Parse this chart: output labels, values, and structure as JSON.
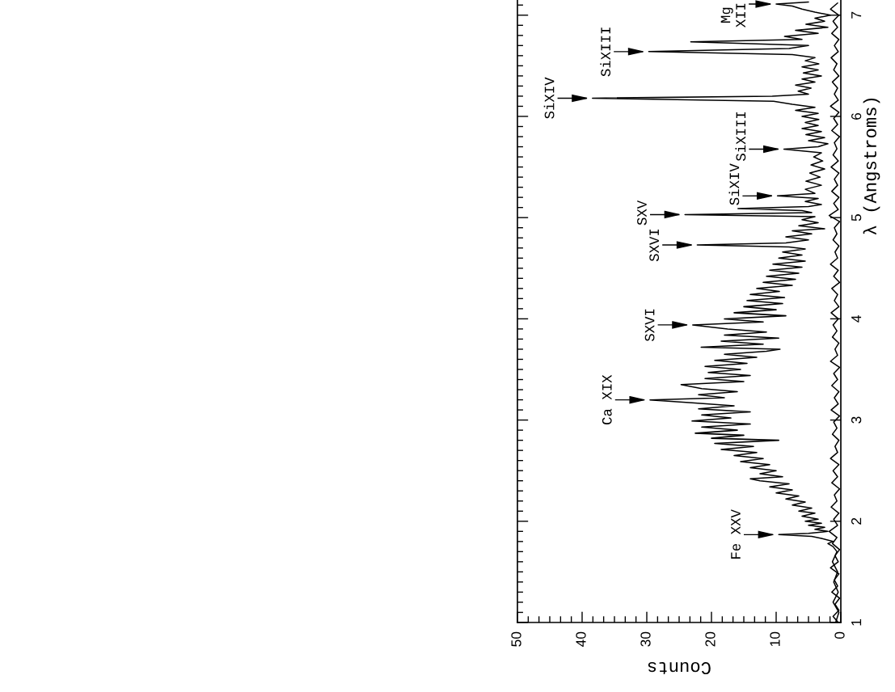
{
  "chart_data": {
    "type": "line",
    "xlabel": "Counts",
    "ylabel": "λ (Angstroms)",
    "xlim": [
      50,
      0
    ],
    "ylim": [
      1,
      7.15
    ],
    "xticks": [
      0,
      {
        "value": 1.67,
        "label": null
      },
      {
        "value": 3.33,
        "label": null
      },
      {
        "value": 5,
        "label": null
      },
      {
        "value": 6.67,
        "label": null
      },
      {
        "value": 8.33,
        "label": null
      },
      10,
      {
        "value": 11.67,
        "label": null
      },
      {
        "value": 13.33,
        "label": null
      },
      {
        "value": 15,
        "label": null
      },
      {
        "value": 16.67,
        "label": null
      },
      {
        "value": 18.33,
        "label": null
      },
      20,
      {
        "value": 21.67,
        "label": null
      },
      {
        "value": 23.33,
        "label": null
      },
      {
        "value": 25,
        "label": null
      },
      {
        "value": 26.67,
        "label": null
      },
      {
        "value": 28.33,
        "label": null
      },
      30,
      {
        "value": 31.67,
        "label": null
      },
      {
        "value": 33.33,
        "label": null
      },
      {
        "value": 35,
        "label": null
      },
      {
        "value": 36.67,
        "label": null
      },
      {
        "value": 38.33,
        "label": null
      },
      40,
      {
        "value": 41.67,
        "label": null
      },
      {
        "value": 43.33,
        "label": null
      },
      {
        "value": 45,
        "label": null
      },
      {
        "value": 46.67,
        "label": null
      },
      {
        "value": 48.33,
        "label": null
      },
      50
    ],
    "yticks": [
      1,
      {
        "value": 1.1,
        "label": null
      },
      {
        "value": 1.2,
        "label": null
      },
      {
        "value": 1.3,
        "label": null
      },
      {
        "value": 1.4,
        "label": null
      },
      {
        "value": 1.5,
        "label": null
      },
      {
        "value": 1.6,
        "label": null
      },
      {
        "value": 1.7,
        "label": null
      },
      {
        "value": 1.8,
        "label": null
      },
      {
        "value": 1.9,
        "label": null
      },
      2,
      {
        "value": 2.1,
        "label": null
      },
      {
        "value": 2.2,
        "label": null
      },
      {
        "value": 2.3,
        "label": null
      },
      {
        "value": 2.4,
        "label": null
      },
      {
        "value": 2.5,
        "label": null
      },
      {
        "value": 2.6,
        "label": null
      },
      {
        "value": 2.7,
        "label": null
      },
      {
        "value": 2.8,
        "label": null
      },
      {
        "value": 2.9,
        "label": null
      },
      3,
      {
        "value": 3.1,
        "label": null
      },
      {
        "value": 3.2,
        "label": null
      },
      {
        "value": 3.3,
        "label": null
      },
      {
        "value": 3.4,
        "label": null
      },
      {
        "value": 3.5,
        "label": null
      },
      {
        "value": 3.6,
        "label": null
      },
      {
        "value": 3.7,
        "label": null
      },
      {
        "value": 3.8,
        "label": null
      },
      {
        "value": 3.9,
        "label": null
      },
      4,
      {
        "value": 4.1,
        "label": null
      },
      {
        "value": 4.2,
        "label": null
      },
      {
        "value": 4.3,
        "label": null
      },
      {
        "value": 4.4,
        "label": null
      },
      {
        "value": 4.5,
        "label": null
      },
      {
        "value": 4.6,
        "label": null
      },
      {
        "value": 4.7,
        "label": null
      },
      {
        "value": 4.8,
        "label": null
      },
      {
        "value": 4.9,
        "label": null
      },
      5,
      {
        "value": 5.1,
        "label": null
      },
      {
        "value": 5.2,
        "label": null
      },
      {
        "value": 5.3,
        "label": null
      },
      {
        "value": 5.4,
        "label": null
      },
      {
        "value": 5.5,
        "label": null
      },
      {
        "value": 5.6,
        "label": null
      },
      {
        "value": 5.7,
        "label": null
      },
      {
        "value": 5.8,
        "label": null
      },
      {
        "value": 5.9,
        "label": null
      },
      6,
      {
        "value": 6.1,
        "label": null
      },
      {
        "value": 6.2,
        "label": null
      },
      {
        "value": 6.3,
        "label": null
      },
      {
        "value": 6.4,
        "label": null
      },
      {
        "value": 6.5,
        "label": null
      },
      {
        "value": 6.6,
        "label": null
      },
      {
        "value": 6.7,
        "label": null
      },
      {
        "value": 6.8,
        "label": null
      },
      {
        "value": 6.9,
        "label": null
      },
      7,
      {
        "value": 7.1,
        "label": null
      }
    ],
    "series": [
      {
        "color": "#000000",
        "values": [
          1.0,
          1.1,
          1.2,
          1.3,
          1.4,
          1.5,
          1.6,
          1.7,
          1.75,
          1.78,
          1.8,
          1.83,
          1.85,
          1.868,
          1.88,
          1.9,
          1.92,
          1.94,
          1.96,
          1.98,
          2.0,
          2.02,
          2.05,
          2.08,
          2.1,
          2.13,
          2.16,
          2.19,
          2.22,
          2.25,
          2.28,
          2.31,
          2.34,
          2.37,
          2.4,
          2.42,
          2.44,
          2.47,
          2.5,
          2.53,
          2.56,
          2.59,
          2.62,
          2.65,
          2.68,
          2.71,
          2.74,
          2.77,
          2.8,
          2.82,
          2.85,
          2.87,
          2.9,
          2.93,
          2.96,
          2.99,
          3.02,
          3.05,
          3.08,
          3.11,
          3.14,
          3.17,
          3.199,
          3.22,
          3.25,
          3.28,
          3.31,
          3.35,
          3.38,
          3.41,
          3.44,
          3.47,
          3.5,
          3.53,
          3.56,
          3.59,
          3.62,
          3.65,
          3.68,
          3.7,
          3.72,
          3.75,
          3.78,
          3.81,
          3.84,
          3.87,
          3.9,
          3.94,
          3.97,
          4.0,
          4.03,
          4.06,
          4.09,
          4.12,
          4.15,
          4.18,
          4.21,
          4.24,
          4.27,
          4.3,
          4.33,
          4.36,
          4.39,
          4.42,
          4.45,
          4.48,
          4.51,
          4.54,
          4.57,
          4.6,
          4.63,
          4.66,
          4.69,
          4.71,
          4.73,
          4.75,
          4.78,
          4.81,
          4.84,
          4.87,
          4.89,
          4.92,
          4.95,
          4.98,
          5.01,
          5.03,
          5.05,
          5.07,
          5.09,
          5.11,
          5.13,
          5.16,
          5.19,
          5.215,
          5.24,
          5.28,
          5.32,
          5.36,
          5.4,
          5.44,
          5.48,
          5.52,
          5.56,
          5.6,
          5.64,
          5.677,
          5.7,
          5.73,
          5.76,
          5.79,
          5.82,
          5.85,
          5.88,
          5.91,
          5.94,
          5.97,
          6.0,
          6.03,
          6.06,
          6.09,
          6.12,
          6.15,
          6.18,
          6.2,
          6.22,
          6.25,
          6.28,
          6.31,
          6.34,
          6.37,
          6.4,
          6.43,
          6.46,
          6.49,
          6.52,
          6.55,
          6.58,
          6.61,
          6.64,
          6.67,
          6.7,
          6.737,
          6.76,
          6.79,
          6.82,
          6.85,
          6.88,
          6.91,
          6.94,
          6.97,
          7.0,
          7.03,
          7.06,
          7.09,
          7.11,
          7.13
        ],
        "x": [
          0.8,
          0.3,
          1.2,
          0.4,
          1.1,
          0.5,
          1.3,
          0.6,
          1.2,
          2.0,
          1.2,
          3.0,
          4.5,
          9.6,
          5.0,
          2.0,
          4.0,
          2.5,
          5.0,
          3.0,
          5.5,
          3.5,
          6.0,
          4.0,
          6.5,
          4.5,
          7.5,
          5.5,
          8.5,
          6.5,
          10.0,
          7.5,
          11.0,
          8.0,
          12.5,
          14.0,
          9.0,
          12.5,
          10.0,
          14.0,
          11.0,
          15.5,
          12.0,
          16.5,
          13.0,
          18.5,
          13.5,
          19.5,
          9.6,
          20.0,
          15.0,
          22.5,
          16.0,
          21.5,
          14.0,
          23.0,
          17.0,
          21.5,
          14.0,
          22.0,
          16.5,
          23.0,
          29.5,
          18.0,
          22.0,
          16.0,
          21.5,
          24.7,
          15.0,
          21.0,
          14.0,
          20.5,
          15.5,
          21.0,
          14.5,
          19.5,
          13.0,
          18.0,
          11.5,
          9.4,
          21.6,
          12.0,
          18.5,
          9.6,
          18.0,
          11.5,
          17.5,
          22.9,
          12.0,
          18.0,
          8.5,
          16.5,
          10.0,
          15.0,
          9.0,
          14.5,
          8.7,
          14.0,
          9.5,
          13.0,
          7.5,
          12.0,
          7.0,
          11.5,
          6.5,
          11.0,
          6.0,
          10.5,
          5.5,
          9.6,
          6.0,
          9.0,
          5.5,
          8.0,
          22.2,
          8.5,
          5.0,
          8.5,
          4.5,
          7.5,
          2.5,
          6.5,
          3.5,
          6.0,
          4.0,
          24.1,
          4.5,
          6.0,
          15.9,
          5.0,
          3.0,
          5.5,
          3.5,
          9.8,
          4.0,
          5.5,
          3.0,
          5.4,
          3.2,
          4.8,
          2.5,
          4.6,
          2.8,
          4.2,
          3.0,
          8.8,
          3.5,
          2.0,
          5.0,
          2.5,
          5.4,
          3.0,
          6.0,
          3.5,
          5.5,
          3.4,
          6.0,
          3.5,
          7.0,
          4.0,
          7.5,
          10.4,
          38.4,
          10.6,
          5.0,
          6.6,
          4.6,
          7.0,
          4.0,
          6.0,
          3.0,
          5.8,
          3.5,
          6.0,
          3.4,
          5.5,
          4.0,
          7.5,
          29.7,
          8.0,
          5.0,
          23.2,
          6.0,
          8.7,
          3.5,
          7.0,
          2.0,
          5.4,
          2.5,
          4.0,
          1.6,
          4.0,
          6.0,
          7.5,
          10.0,
          5.0
        ]
      },
      {
        "color": "#000000",
        "values": [
          1.0,
          1.06,
          1.12,
          1.18,
          1.24,
          1.3,
          1.36,
          1.42,
          1.48,
          1.54,
          1.6,
          1.66,
          1.72,
          1.78,
          1.84,
          1.9,
          1.96,
          2.02,
          2.08,
          2.14,
          2.2,
          2.26,
          2.32,
          2.38,
          2.44,
          2.5,
          2.56,
          2.62,
          2.68,
          2.74,
          2.8,
          2.86,
          2.92,
          2.98,
          3.04,
          3.1,
          3.16,
          3.22,
          3.28,
          3.34,
          3.4,
          3.46,
          3.52,
          3.58,
          3.64,
          3.7,
          3.76,
          3.82,
          3.88,
          3.94,
          4.0,
          4.06,
          4.12,
          4.18,
          4.24,
          4.3,
          4.36,
          4.42,
          4.48,
          4.54,
          4.6,
          4.66,
          4.72,
          4.78,
          4.84,
          4.9,
          4.96,
          5.02,
          5.08,
          5.14,
          5.2,
          5.26,
          5.32,
          5.38,
          5.44,
          5.5,
          5.56,
          5.62,
          5.68,
          5.74,
          5.8,
          5.86,
          5.92,
          5.98,
          6.04,
          6.1,
          6.16,
          6.22,
          6.28,
          6.34,
          6.4,
          6.46,
          6.52,
          6.58,
          6.64,
          6.7,
          6.76,
          6.82,
          6.88,
          6.94,
          7.0,
          7.06,
          7.12
        ],
        "x": [
          0.4,
          1.2,
          0.3,
          0.9,
          0.2,
          1.4,
          0.5,
          1.0,
          0.3,
          1.6,
          0.4,
          0.9,
          0.2,
          1.3,
          0.6,
          1.8,
          0.5,
          1.1,
          0.3,
          1.5,
          0.6,
          1.0,
          0.2,
          1.4,
          0.5,
          1.2,
          0.3,
          1.6,
          0.5,
          0.9,
          0.3,
          1.3,
          0.6,
          1.1,
          0.2,
          1.5,
          0.4,
          1.0,
          0.3,
          1.4,
          0.5,
          1.1,
          0.2,
          1.6,
          0.5,
          0.9,
          0.3,
          1.3,
          0.6,
          1.2,
          0.4,
          1.5,
          0.3,
          1.0,
          0.5,
          1.4,
          0.2,
          1.1,
          0.4,
          1.6,
          0.5,
          0.9,
          0.3,
          1.2,
          0.6,
          1.0,
          0.2,
          1.8,
          0.4,
          1.1,
          0.3,
          1.4,
          0.5,
          1.0,
          0.3,
          1.5,
          0.4,
          1.2,
          0.6,
          1.0,
          0.2,
          1.4,
          0.5,
          1.1,
          0.3,
          1.6,
          0.4,
          1.0,
          0.5,
          1.3,
          0.3,
          1.1,
          0.6,
          1.5,
          0.4,
          1.0,
          0.3,
          1.4,
          0.5,
          1.2,
          0.3,
          1.6,
          0.5
        ]
      }
    ],
    "annotations": [
      {
        "text": "Fe XXV",
        "x": 9.6,
        "y": 1.868
      },
      {
        "text": "Ca XIX",
        "x": 29.5,
        "y": 3.199
      },
      {
        "text": "SXVI",
        "x": 22.9,
        "y": 3.94
      },
      {
        "text": "SXVI",
        "x": 22.2,
        "y": 4.73
      },
      {
        "text": "SXV",
        "x": 24.1,
        "y": 5.03
      },
      {
        "text": "SiXIV",
        "x": 9.8,
        "y": 5.215
      },
      {
        "text": "SiXIII",
        "x": 8.8,
        "y": 5.677
      },
      {
        "text": "SiXIV",
        "x": 38.4,
        "y": 6.18
      },
      {
        "text": "SiXIII",
        "x": 29.7,
        "y": 6.64
      },
      {
        "text": "Mg XII",
        "x": 10.0,
        "y": 7.11
      }
    ]
  }
}
